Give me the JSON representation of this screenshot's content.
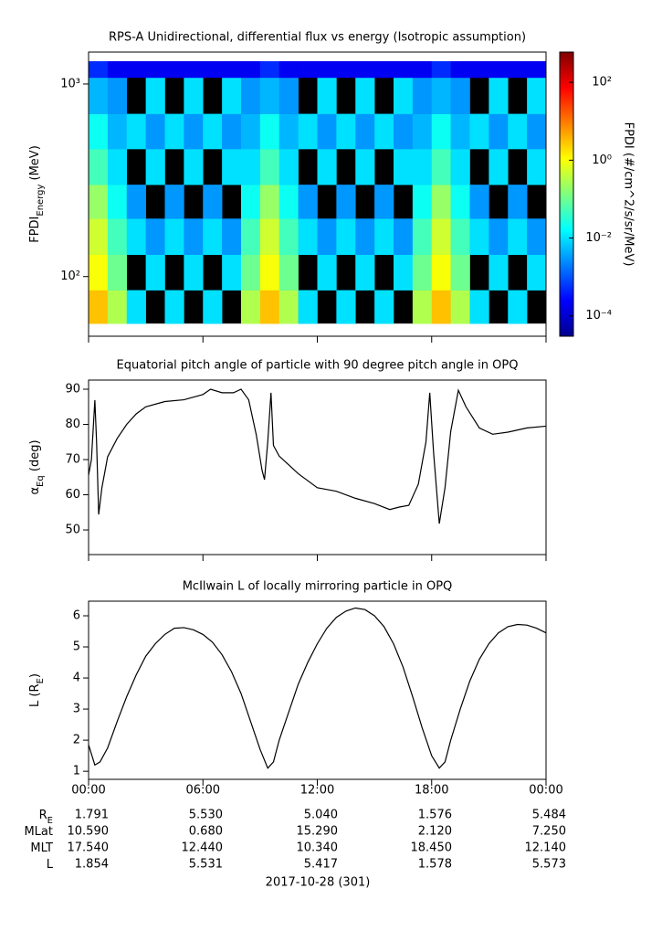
{
  "chart_data": [
    {
      "type": "heatmap",
      "title": "RPS-A Unidirectional, differential flux vs energy (Isotropic assumption)",
      "ylabel": {
        "text": "FPDI",
        "sub": "Energy",
        "suffix": " (MeV)"
      },
      "zlabel": "FPDI (#/cm^2/s/sr/MeV)",
      "xlim": [
        0,
        24
      ],
      "xticks": [
        0,
        6,
        12,
        18,
        24
      ],
      "ylim": [
        49,
        1465
      ],
      "ylog": true,
      "yticks": [
        {
          "value": 100,
          "label": "10²"
        },
        {
          "value": 1000,
          "label": "10³"
        }
      ],
      "zlim": [
        3e-05,
        600
      ],
      "zlog": true,
      "colormap": "jet",
      "zticks": [
        {
          "value": 0.0001,
          "label": "10⁻⁴"
        },
        {
          "value": 0.01,
          "label": "10⁻²"
        },
        {
          "value": 1,
          "label": "10⁰"
        },
        {
          "value": 100,
          "label": "10²"
        }
      ],
      "x": [
        0,
        1,
        2,
        3,
        4,
        5,
        6,
        7,
        8,
        9,
        10,
        11,
        12,
        13,
        14,
        15,
        16,
        17,
        18,
        19,
        20,
        21,
        22,
        23,
        24
      ],
      "ybins": [
        57,
        85,
        130,
        200,
        300,
        460,
        700,
        1080,
        1313
      ],
      "z": [
        [
          3,
          1,
          0.5,
          0.2,
          0.05,
          0.02,
          0.005,
          0.0005
        ],
        [
          0.3,
          0.1,
          0.05,
          0.02,
          0.01,
          0.005,
          0.003,
          0.0002
        ],
        [
          0.01,
          null,
          0.01,
          0.003,
          null,
          0.01,
          null,
          0.0002
        ],
        [
          null,
          0.01,
          0.003,
          null,
          0.01,
          0.003,
          0.01,
          0.0002
        ],
        [
          0.01,
          null,
          0.01,
          0.003,
          null,
          0.01,
          null,
          0.0002
        ],
        [
          null,
          0.01,
          0.003,
          null,
          0.01,
          0.003,
          0.01,
          0.0002
        ],
        [
          0.01,
          null,
          0.01,
          0.003,
          null,
          0.01,
          null,
          0.0002
        ],
        [
          null,
          0.01,
          0.003,
          null,
          0.01,
          0.003,
          0.01,
          0.0002
        ],
        [
          0.3,
          0.1,
          0.05,
          0.02,
          0.01,
          0.005,
          0.003,
          0.0002
        ],
        [
          3,
          1,
          0.5,
          0.2,
          0.05,
          0.02,
          0.005,
          0.0005
        ],
        [
          0.3,
          0.1,
          0.05,
          0.02,
          0.01,
          0.005,
          0.003,
          0.0002
        ],
        [
          0.01,
          null,
          0.01,
          0.003,
          null,
          0.01,
          null,
          0.0002
        ],
        [
          null,
          0.01,
          0.003,
          null,
          0.01,
          0.003,
          0.01,
          0.0002
        ],
        [
          0.01,
          null,
          0.01,
          0.003,
          null,
          0.01,
          null,
          0.0002
        ],
        [
          null,
          0.01,
          0.003,
          null,
          0.01,
          0.003,
          0.01,
          0.0002
        ],
        [
          0.01,
          null,
          0.01,
          0.003,
          null,
          0.01,
          null,
          0.0002
        ],
        [
          null,
          0.01,
          0.003,
          null,
          0.01,
          0.003,
          0.01,
          0.0002
        ],
        [
          0.3,
          0.1,
          0.05,
          0.02,
          0.01,
          0.005,
          0.003,
          0.0002
        ],
        [
          3,
          1,
          0.5,
          0.2,
          0.05,
          0.02,
          0.005,
          0.0005
        ],
        [
          0.3,
          0.1,
          0.05,
          0.02,
          0.01,
          0.005,
          0.003,
          0.0002
        ],
        [
          0.01,
          null,
          0.01,
          0.003,
          null,
          0.01,
          null,
          0.0002
        ],
        [
          null,
          0.01,
          0.003,
          null,
          0.01,
          0.003,
          0.01,
          0.0002
        ],
        [
          0.01,
          null,
          0.01,
          0.003,
          null,
          0.01,
          null,
          0.0002
        ],
        [
          null,
          0.01,
          0.003,
          null,
          0.01,
          0.003,
          0.01,
          0.0002
        ]
      ]
    },
    {
      "type": "line",
      "title": "Equatorial pitch angle of particle with 90 degree pitch angle in OPQ",
      "ylabel": {
        "text": "α",
        "sub": "Eq",
        "suffix": " (deg)"
      },
      "xlim": [
        0,
        24
      ],
      "xticks": [
        0,
        6,
        12,
        18,
        24
      ],
      "ylim": [
        43,
        92.6
      ],
      "yticks": [
        50,
        60,
        70,
        80,
        90
      ],
      "series": [
        {
          "color": "#000000",
          "x": [
            0,
            0.15,
            0.33,
            0.42,
            0.53,
            0.7,
            1,
            1.5,
            2,
            2.5,
            3,
            4,
            5,
            6,
            6.4,
            7,
            7.6,
            8,
            8.4,
            8.8,
            9.1,
            9.23,
            9.4,
            9.57,
            9.7,
            10,
            11,
            12,
            13,
            14,
            15,
            15.8,
            16.3,
            16.8,
            17.3,
            17.7,
            17.9,
            18.1,
            18.4,
            18.7,
            19,
            19.4,
            19.8,
            20.5,
            21.2,
            22,
            23,
            24
          ],
          "values": [
            65.6,
            70,
            86.9,
            75,
            54.4,
            62,
            70.8,
            76,
            80,
            83,
            85,
            86.5,
            87,
            88.5,
            90,
            89,
            89,
            90,
            87,
            77,
            67,
            64.3,
            75,
            89,
            74,
            71,
            66,
            62,
            61,
            59,
            57.5,
            55.8,
            56.5,
            57,
            63,
            75,
            89,
            72,
            51.8,
            62,
            78,
            89.7,
            85,
            79,
            77.2,
            77.8,
            79,
            79.5
          ]
        }
      ]
    },
    {
      "type": "line",
      "title": "McIlwain L of locally mirroring particle in OPQ",
      "ylabel": {
        "text": "L (R",
        "sub": "E",
        "suffix": ")"
      },
      "xlim": [
        0,
        24
      ],
      "xticks": [
        {
          "value": 0,
          "label": "00:00"
        },
        {
          "value": 6,
          "label": "06:00"
        },
        {
          "value": 12,
          "label": "12:00"
        },
        {
          "value": 18,
          "label": "18:00"
        },
        {
          "value": 24,
          "label": "00:00"
        }
      ],
      "ylim": [
        0.74,
        6.47
      ],
      "yticks": [
        1,
        2,
        3,
        4,
        5,
        6
      ],
      "series": [
        {
          "color": "#000000",
          "x": [
            0,
            0.33,
            0.6,
            1,
            1.5,
            2,
            2.5,
            3,
            3.5,
            4,
            4.5,
            5,
            5.5,
            6,
            6.5,
            7,
            7.5,
            8,
            8.5,
            9,
            9.4,
            9.7,
            10,
            10.5,
            11,
            11.5,
            12,
            12.5,
            13,
            13.5,
            14,
            14.5,
            15,
            15.5,
            16,
            16.5,
            17,
            17.5,
            18,
            18.4,
            18.7,
            19,
            19.5,
            20,
            20.5,
            21,
            21.5,
            22,
            22.5,
            23,
            23.5,
            24
          ],
          "values": [
            1.85,
            1.2,
            1.3,
            1.75,
            2.6,
            3.4,
            4.1,
            4.7,
            5.1,
            5.4,
            5.6,
            5.62,
            5.55,
            5.4,
            5.15,
            4.75,
            4.2,
            3.5,
            2.6,
            1.7,
            1.1,
            1.3,
            2.0,
            2.9,
            3.8,
            4.5,
            5.1,
            5.6,
            5.95,
            6.15,
            6.25,
            6.2,
            6.0,
            5.65,
            5.1,
            4.35,
            3.4,
            2.4,
            1.5,
            1.1,
            1.3,
            2.0,
            3.0,
            3.9,
            4.6,
            5.1,
            5.45,
            5.65,
            5.72,
            5.7,
            5.6,
            5.45
          ]
        }
      ]
    }
  ],
  "ephemeris": {
    "labels": [
      {
        "text": "R",
        "sub": "E"
      },
      {
        "text": "MLat"
      },
      {
        "text": "MLT"
      },
      {
        "text": "L"
      }
    ],
    "rows": [
      [
        "1.791",
        "5.530",
        "5.040",
        "1.576",
        "5.484"
      ],
      [
        "10.590",
        "0.680",
        "15.290",
        "2.120",
        "7.250"
      ],
      [
        "17.540",
        "12.440",
        "10.340",
        "18.450",
        "12.140"
      ],
      [
        "1.854",
        "5.531",
        "5.417",
        "1.578",
        "5.573"
      ]
    ],
    "date": "2017-10-28 (301)"
  }
}
